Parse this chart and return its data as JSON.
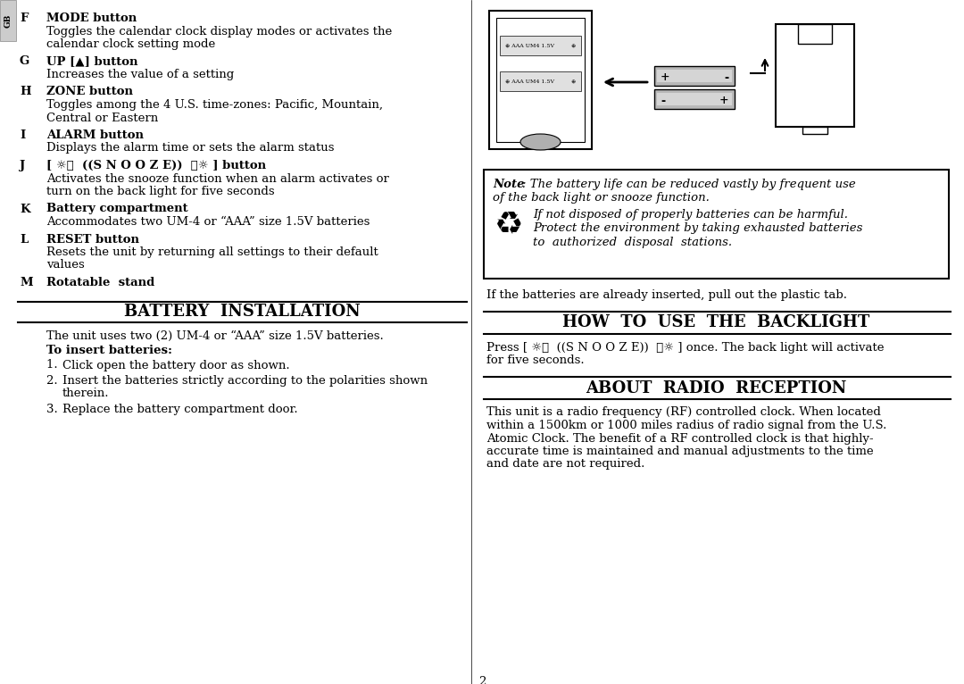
{
  "bg_color": "#ffffff",
  "page_number": "2",
  "entries": [
    {
      "letter": "F",
      "bold": "MODE button",
      "body": "Toggles the calendar clock display modes or activates the\ncalendar clock setting mode"
    },
    {
      "letter": "G",
      "bold": "UP [▲] button",
      "body": "Increases the value of a setting"
    },
    {
      "letter": "H",
      "bold": "ZONE button",
      "body": "Toggles among the 4 U.S. time-zones: Pacific, Mountain,\nCentral or Eastern"
    },
    {
      "letter": "I",
      "bold": "ALARM button",
      "body": "Displays the alarm time or sets the alarm status"
    },
    {
      "letter": "J",
      "bold": "[ ☼：  ((S N O O Z E))  ：☼ ] button",
      "body": "Activates the snooze function when an alarm activates or\nturn on the back light for five seconds"
    },
    {
      "letter": "K",
      "bold": "Battery compartment",
      "body": "Accommodates two UM-4 or “AAA” size 1.5V batteries"
    },
    {
      "letter": "L",
      "bold": "RESET button",
      "body": "Resets the unit by returning all settings to their default\nvalues"
    },
    {
      "letter": "M",
      "bold": "Rotatable  stand",
      "body": ""
    }
  ],
  "battery_intro": "The unit uses two (2) UM-4 or “AAA” size 1.5V batteries.",
  "insert_bold": "To insert batteries:",
  "steps": [
    "Click open the battery door as shown.",
    "Insert the batteries strictly according to the polarities shown\ntherein.",
    "Replace the battery compartment door."
  ],
  "note_bold": "Note",
  "note_italic": ": The battery life can be reduced vastly by frequent use\nof the back light or snooze function.",
  "recycle_lines": [
    "If not disposed of properly batteries can be harmful.",
    "Protect the environment by taking exhausted batteries",
    "to  authorized  disposal  stations."
  ],
  "plastic_tab": "If the batteries are already inserted, pull out the plastic tab.",
  "backlight_title": "HOW  TO  USE  THE  BACKLIGHT",
  "backlight_line1": "Press [ ☼：  ((S N O O Z E))  ：☼ ] once. The back light will activate",
  "backlight_line2": "for five seconds.",
  "radio_title": "ABOUT  RADIO  RECEPTION",
  "radio_lines": [
    "This unit is a radio frequency (RF) controlled clock. When located",
    "within a 1500km or 1000 miles radius of radio signal from the U.S.",
    "Atomic Clock. The benefit of a RF controlled clock is that highly-",
    "accurate time is maintained and manual adjustments to the time",
    "and date are not required."
  ]
}
